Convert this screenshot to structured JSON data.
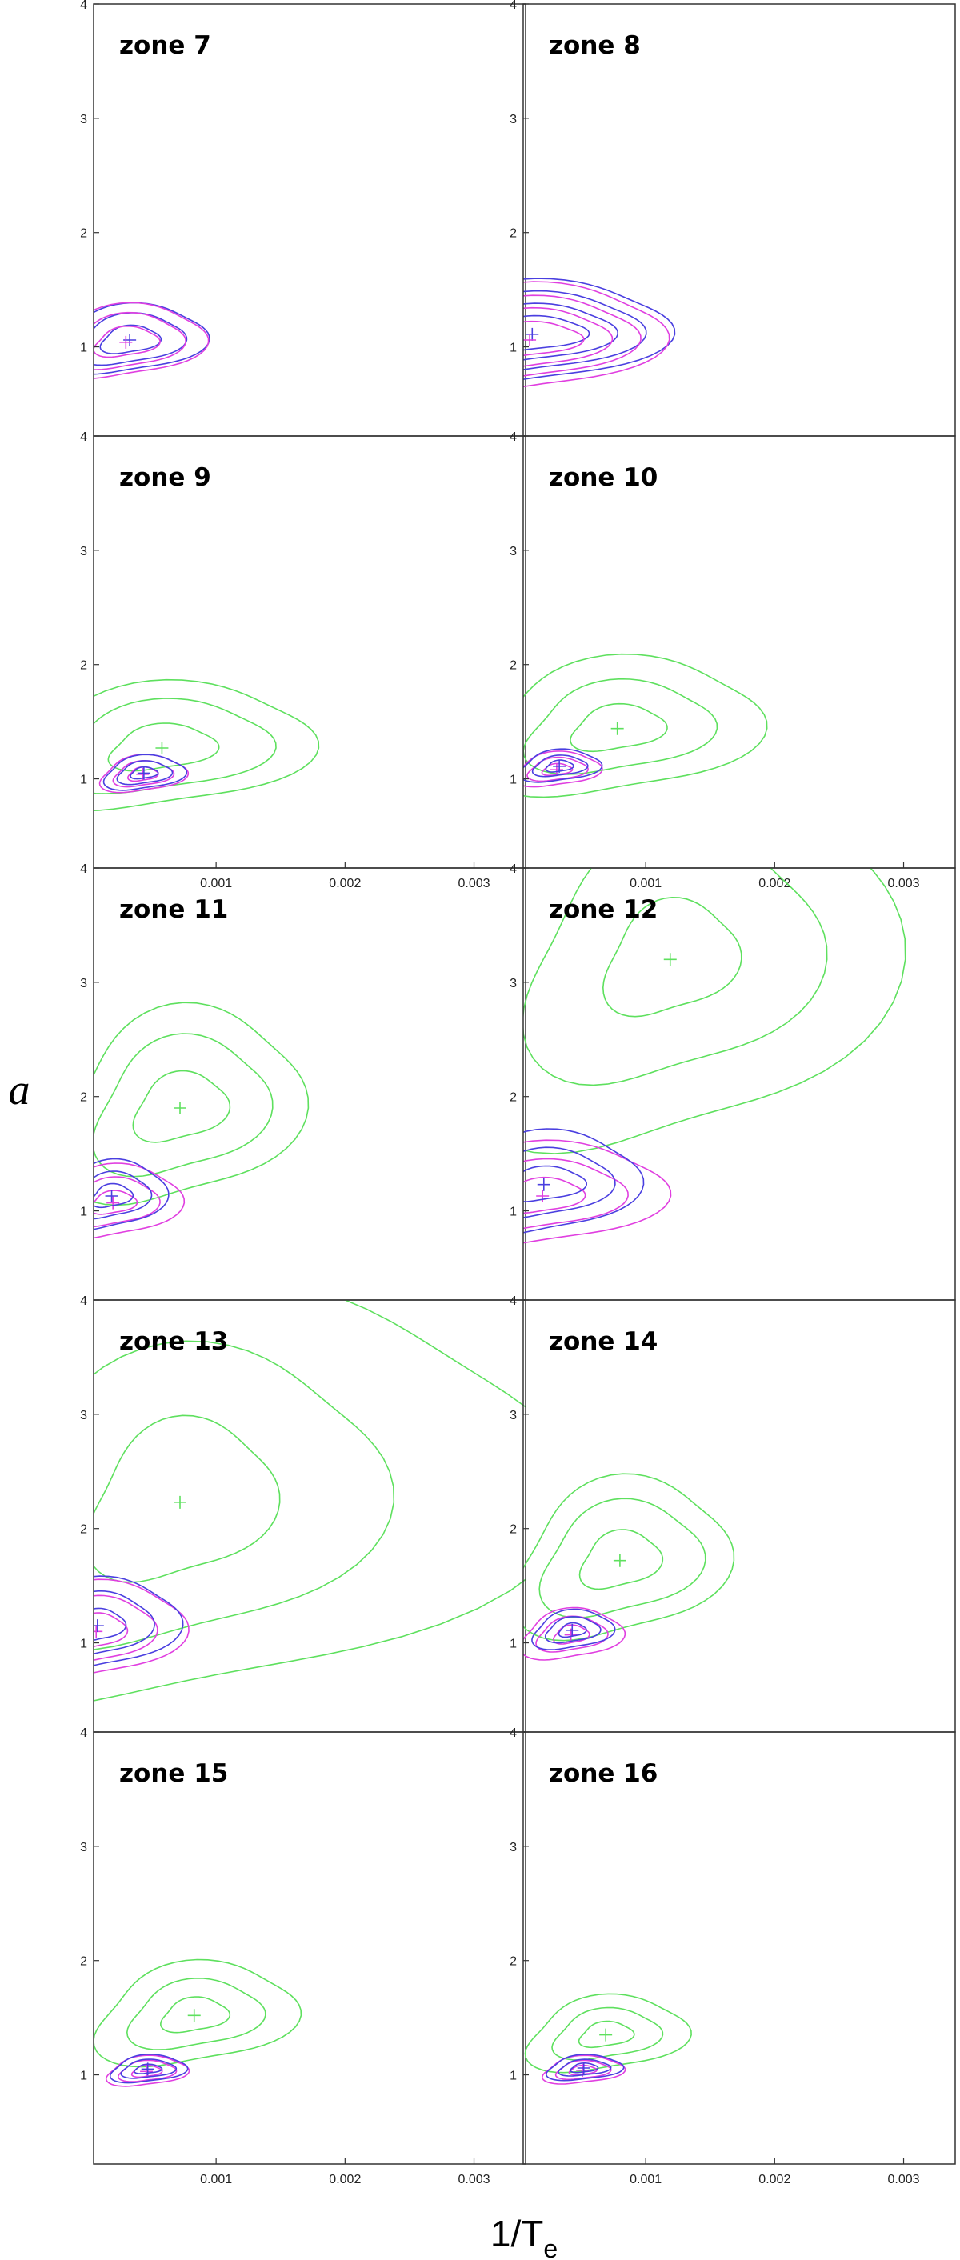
{
  "chart_data": [
    {
      "type": "contour",
      "title": "zone 7",
      "xlim": [
        5e-05,
        0.0034
      ],
      "ylim": [
        0.22,
        4
      ],
      "yticks": [
        1,
        2,
        3,
        4
      ],
      "series": [
        {
          "color": "#4a3fe0",
          "cx": 0.00033,
          "cy": 1.06,
          "rx": [
            0.00056,
            0.0004,
            0.00022
          ],
          "ry": [
            0.3,
            0.22,
            0.12
          ]
        },
        {
          "color": "#e03fe0",
          "cx": 0.0003,
          "cy": 1.04,
          "rx": [
            0.00058,
            0.00042,
            0.00024
          ],
          "ry": [
            0.32,
            0.24,
            0.13
          ]
        }
      ]
    },
    {
      "type": "contour",
      "title": "zone 8",
      "xlim": [
        5e-05,
        0.0034
      ],
      "ylim": [
        0.22,
        4
      ],
      "yticks": [
        1,
        2,
        3,
        4
      ],
      "series": [
        {
          "color": "#4a3fe0",
          "cx": 0.00012,
          "cy": 1.11,
          "rx": [
            0.001,
            0.0008,
            0.0006,
            0.0004
          ],
          "ry": [
            0.45,
            0.35,
            0.25,
            0.15
          ]
        },
        {
          "color": "#e03fe0",
          "cx": 0.0001,
          "cy": 1.06,
          "rx": [
            0.00098,
            0.00078,
            0.00058,
            0.00038
          ],
          "ry": [
            0.47,
            0.36,
            0.26,
            0.15
          ]
        }
      ]
    },
    {
      "type": "contour",
      "title": "zone 9",
      "xlim": [
        5e-05,
        0.0034
      ],
      "ylim": [
        0.22,
        4
      ],
      "yticks": [
        1,
        2,
        3,
        4
      ],
      "xticks": [
        0.001,
        0.002,
        0.003
      ],
      "series": [
        {
          "color": "#5ee05e",
          "cx": 0.00058,
          "cy": 1.27,
          "rx": [
            0.0011,
            0.0008,
            0.0004
          ],
          "ry": [
            0.55,
            0.4,
            0.2
          ]
        },
        {
          "color": "#e03fe0",
          "cx": 0.00043,
          "cy": 1.04,
          "rx": [
            0.00032,
            0.00022,
            0.00011
          ],
          "ry": [
            0.16,
            0.11,
            0.06
          ]
        },
        {
          "color": "#4a3fe0",
          "cx": 0.00044,
          "cy": 1.05,
          "rx": [
            0.0003,
            0.0002,
            0.0001
          ],
          "ry": [
            0.15,
            0.1,
            0.05
          ]
        }
      ]
    },
    {
      "type": "contour",
      "title": "zone 10",
      "xlim": [
        5e-05,
        0.0034
      ],
      "ylim": [
        0.22,
        4
      ],
      "yticks": [
        1,
        2,
        3,
        4
      ],
      "xticks": [
        0.001,
        0.002,
        0.003
      ],
      "series": [
        {
          "color": "#5ee05e",
          "cx": 0.00078,
          "cy": 1.44,
          "rx": [
            0.00105,
            0.0007,
            0.00035
          ],
          "ry": [
            0.6,
            0.4,
            0.2
          ]
        },
        {
          "color": "#e03fe0",
          "cx": 0.00031,
          "cy": 1.08,
          "rx": [
            0.00032,
            0.00022,
            0.00011
          ],
          "ry": [
            0.15,
            0.1,
            0.05
          ]
        },
        {
          "color": "#4a3fe0",
          "cx": 0.00033,
          "cy": 1.11,
          "rx": [
            0.0003,
            0.0002,
            0.0001
          ],
          "ry": [
            0.14,
            0.09,
            0.05
          ]
        }
      ]
    },
    {
      "type": "contour",
      "title": "zone 11",
      "xlim": [
        5e-05,
        0.0034
      ],
      "ylim": [
        0.22,
        4
      ],
      "yticks": [
        1,
        2,
        3,
        4
      ],
      "series": [
        {
          "color": "#5ee05e",
          "cx": 0.00072,
          "cy": 1.9,
          "rx": [
            0.0009,
            0.00065,
            0.00035
          ],
          "ry": [
            0.85,
            0.6,
            0.3
          ]
        },
        {
          "color": "#e03fe0",
          "cx": 0.0002,
          "cy": 1.07,
          "rx": [
            0.0005,
            0.00033,
            0.00017
          ],
          "ry": [
            0.32,
            0.21,
            0.1
          ]
        },
        {
          "color": "#4a3fe0",
          "cx": 0.00019,
          "cy": 1.13,
          "rx": [
            0.0004,
            0.00028,
            0.00015
          ],
          "ry": [
            0.3,
            0.2,
            0.1
          ]
        }
      ]
    },
    {
      "type": "contour",
      "title": "zone 12",
      "xlim": [
        5e-05,
        0.0034
      ],
      "ylim": [
        0.22,
        4
      ],
      "yticks": [
        1,
        2,
        3,
        4
      ],
      "series": [
        {
          "color": "#5ee05e",
          "cx": 0.00119,
          "cy": 3.2,
          "rx": [
            0.00165,
            0.0011,
            0.0005
          ],
          "ry": [
            1.7,
            1.1,
            0.5
          ]
        },
        {
          "color": "#e03fe0",
          "cx": 0.0002,
          "cy": 1.13,
          "rx": [
            0.0009,
            0.0006,
            0.0003
          ],
          "ry": [
            0.45,
            0.3,
            0.15
          ]
        },
        {
          "color": "#4a3fe0",
          "cx": 0.00021,
          "cy": 1.23,
          "rx": [
            0.0007,
            0.0005,
            0.0003
          ],
          "ry": [
            0.45,
            0.3,
            0.15
          ]
        }
      ]
    },
    {
      "type": "contour",
      "title": "zone 13",
      "xlim": [
        5e-05,
        0.0034
      ],
      "ylim": [
        0.22,
        4
      ],
      "yticks": [
        1,
        2,
        3,
        4
      ],
      "series": [
        {
          "color": "#5ee05e",
          "cx": 0.00072,
          "cy": 2.23,
          "rx": [
            0.0028,
            0.0015,
            0.0007
          ],
          "ry": [
            1.85,
            1.3,
            0.7
          ]
        },
        {
          "color": "#e03fe0",
          "cx": 7e-05,
          "cy": 1.1,
          "rx": [
            0.00065,
            0.00043,
            0.00022
          ],
          "ry": [
            0.42,
            0.29,
            0.15
          ]
        },
        {
          "color": "#4a3fe0",
          "cx": 8e-05,
          "cy": 1.15,
          "rx": [
            0.0006,
            0.0004,
            0.0002
          ],
          "ry": [
            0.4,
            0.28,
            0.14
          ]
        }
      ]
    },
    {
      "type": "contour",
      "title": "zone 14",
      "xlim": [
        5e-05,
        0.0034
      ],
      "ylim": [
        0.22,
        4
      ],
      "yticks": [
        1,
        2,
        3,
        4
      ],
      "series": [
        {
          "color": "#5ee05e",
          "cx": 0.0008,
          "cy": 1.72,
          "rx": [
            0.0008,
            0.0006,
            0.0003
          ],
          "ry": [
            0.7,
            0.5,
            0.25
          ]
        },
        {
          "color": "#e03fe0",
          "cx": 0.00042,
          "cy": 1.07,
          "rx": [
            0.00038,
            0.00026,
            0.00013
          ],
          "ry": [
            0.22,
            0.15,
            0.08
          ]
        },
        {
          "color": "#4a3fe0",
          "cx": 0.00043,
          "cy": 1.11,
          "rx": [
            0.0003,
            0.0002,
            0.0001
          ],
          "ry": [
            0.17,
            0.11,
            0.06
          ]
        }
      ]
    },
    {
      "type": "contour",
      "title": "zone 15",
      "xlim": [
        5e-05,
        0.0034
      ],
      "ylim": [
        0.22,
        4
      ],
      "yticks": [
        1,
        2,
        3,
        4
      ],
      "xticks": [
        0.001,
        0.002,
        0.003
      ],
      "series": [
        {
          "color": "#5ee05e",
          "cx": 0.00083,
          "cy": 1.52,
          "rx": [
            0.00075,
            0.0005,
            0.00025
          ],
          "ry": [
            0.45,
            0.3,
            0.15
          ]
        },
        {
          "color": "#e03fe0",
          "cx": 0.00046,
          "cy": 1.03,
          "rx": [
            0.0003,
            0.00021,
            0.00011
          ],
          "ry": [
            0.13,
            0.09,
            0.05
          ]
        },
        {
          "color": "#4a3fe0",
          "cx": 0.00047,
          "cy": 1.05,
          "rx": [
            0.00028,
            0.0002,
            0.0001
          ],
          "ry": [
            0.12,
            0.08,
            0.04
          ]
        }
      ]
    },
    {
      "type": "contour",
      "title": "zone 16",
      "xlim": [
        5e-05,
        0.0034
      ],
      "ylim": [
        0.22,
        4
      ],
      "yticks": [
        1,
        2,
        3,
        4
      ],
      "xticks": [
        0.001,
        0.002,
        0.003
      ],
      "series": [
        {
          "color": "#5ee05e",
          "cx": 0.00069,
          "cy": 1.35,
          "rx": [
            0.0006,
            0.0004,
            0.0002
          ],
          "ry": [
            0.33,
            0.22,
            0.11
          ]
        },
        {
          "color": "#e03fe0",
          "cx": 0.00051,
          "cy": 1.04,
          "rx": [
            0.0003,
            0.0002,
            0.0001
          ],
          "ry": [
            0.12,
            0.08,
            0.04
          ]
        },
        {
          "color": "#4a3fe0",
          "cx": 0.00052,
          "cy": 1.06,
          "rx": [
            0.00028,
            0.00019,
            0.0001
          ],
          "ry": [
            0.11,
            0.07,
            0.04
          ]
        }
      ]
    }
  ],
  "y_label": "a",
  "x_label": "1/T",
  "x_label_subscript": "e"
}
